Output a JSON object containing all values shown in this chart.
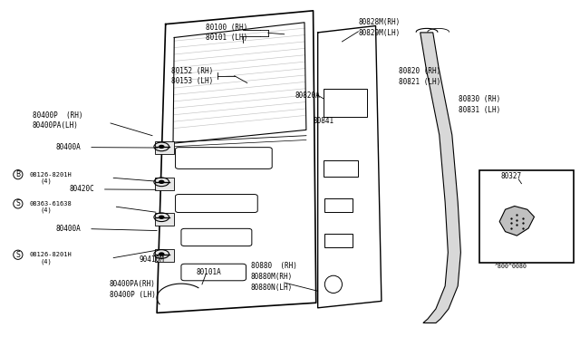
{
  "background_color": "#ffffff",
  "diagram_code": "^800^0080",
  "parts_labels": {
    "top_label": "80100 (RH)\n80101 (LH)",
    "mid_label": "80152 (RH)\n80153 (LH)",
    "latch_top": "80400P  (RH)\n80400PA(LH)",
    "latch_a1": "80400A",
    "bolt_b1": "08126-8201H",
    "bolt_b1_qty": "(4)",
    "clip_c": "80420C",
    "bolt_s1": "08363-61638",
    "bolt_s1_qty": "(4)",
    "latch_a2": "80400A",
    "bolt_s2": "08126-8201H",
    "bolt_s2_qty": "(4)",
    "latch_bot": "80400PA(RH)\n80400P (LH)",
    "inner_ref": "80101A",
    "clip_m": "90410M",
    "seal_top": "80828M(RH)\n80829M(LH)",
    "seal_side": "80820 (RH)\n80821 (LH)",
    "seal_a": "80820A",
    "seal_inner": "80841",
    "seal_outer": "80830 (RH)\n80831 (LH)",
    "bottom_seal": "80880  (RH)\n80880M(RH)\n80880N(LH)",
    "part_box": "80327"
  }
}
